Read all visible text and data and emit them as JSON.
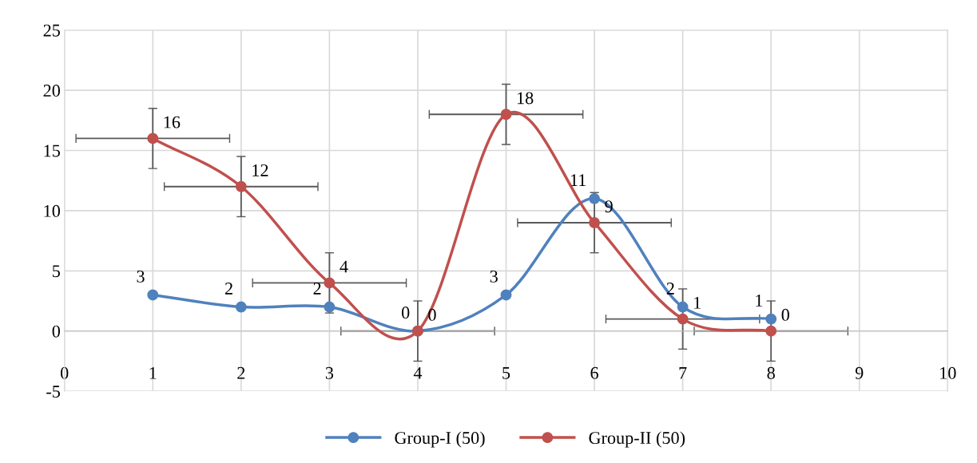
{
  "chart_data": {
    "type": "line",
    "x": [
      1,
      2,
      3,
      4,
      5,
      6,
      7,
      8
    ],
    "series": [
      {
        "name": "Group-I (50)",
        "color": "#4f81bd",
        "values": [
          3,
          2,
          2,
          0,
          3,
          11,
          2,
          1
        ]
      },
      {
        "name": "Group-II (50)",
        "color": "#c0504d",
        "values": [
          16,
          12,
          4,
          0,
          18,
          9,
          1,
          0
        ],
        "errors": [
          2.5,
          2.5,
          2.5,
          2.5,
          2.5,
          2.5,
          2.5,
          2.5
        ],
        "xerrors": [
          0.87,
          0.87,
          0.87,
          0.87,
          0.87,
          0.87,
          0.87,
          0.87
        ]
      }
    ],
    "xlim": [
      0,
      10
    ],
    "xticks": [
      0,
      1,
      2,
      3,
      4,
      5,
      6,
      7,
      8,
      9,
      10
    ],
    "ylim": [
      -5,
      25
    ],
    "yticks": [
      -5,
      0,
      5,
      10,
      15,
      20,
      25
    ],
    "grid": true,
    "legend": "bottom",
    "marker": "circle",
    "line_style": "solid",
    "data_labels": true
  }
}
